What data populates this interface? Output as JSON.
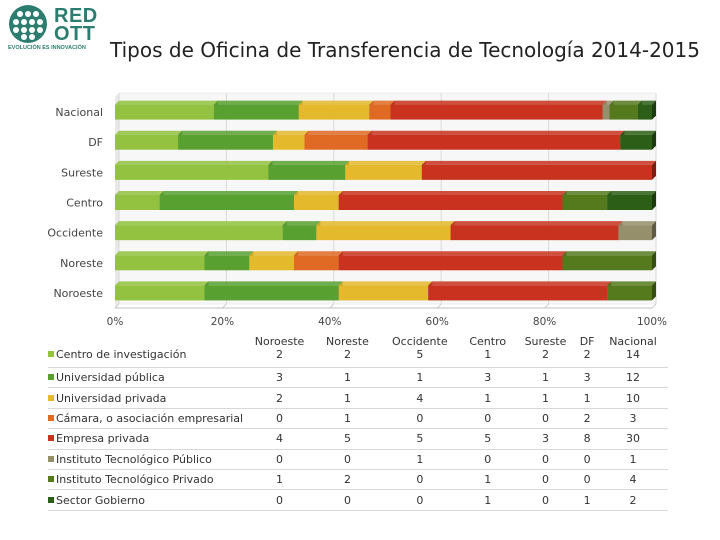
{
  "logo": {
    "line1": "RED",
    "line2": "OTT",
    "tagline": "EVOLUCIÓN ES INNOVACIÓN"
  },
  "chart_data": {
    "type": "bar",
    "orientation": "horizontal",
    "stacked": "percent",
    "title": "Tipos de Oficina de Transferencia de Tecnología 2014-2015",
    "categories": [
      "Noroeste",
      "Noreste",
      "Occidente",
      "Centro",
      "Sureste",
      "DF",
      "Nacional"
    ],
    "x_ticks": [
      "0%",
      "20%",
      "40%",
      "60%",
      "80%",
      "100%"
    ],
    "xlim": [
      0,
      100
    ],
    "series": [
      {
        "name": "Centro de investigación",
        "color": "#92c240",
        "values": [
          2,
          2,
          5,
          1,
          2,
          2,
          14
        ]
      },
      {
        "name": "Universidad pública",
        "color": "#58a02f",
        "values": [
          3,
          1,
          1,
          3,
          1,
          3,
          12
        ]
      },
      {
        "name": "Universidad privada",
        "color": "#e4b92c",
        "values": [
          2,
          1,
          4,
          1,
          1,
          1,
          10
        ]
      },
      {
        "name": "Cámara, o asociación empresarial",
        "color": "#e06a23",
        "values": [
          0,
          1,
          0,
          0,
          0,
          2,
          3
        ]
      },
      {
        "name": "Empresa privada",
        "color": "#c8321f",
        "values": [
          4,
          5,
          5,
          5,
          3,
          8,
          30
        ]
      },
      {
        "name": "Instituto Tecnológico Público",
        "color": "#968f6c",
        "values": [
          0,
          0,
          1,
          0,
          0,
          0,
          1
        ]
      },
      {
        "name": "Instituto Tecnológico Privado",
        "color": "#557a1e",
        "values": [
          1,
          2,
          0,
          1,
          0,
          0,
          4
        ]
      },
      {
        "name": "Sector Gobierno",
        "color": "#2d5e17",
        "values": [
          0,
          0,
          0,
          1,
          0,
          1,
          2
        ]
      }
    ]
  }
}
